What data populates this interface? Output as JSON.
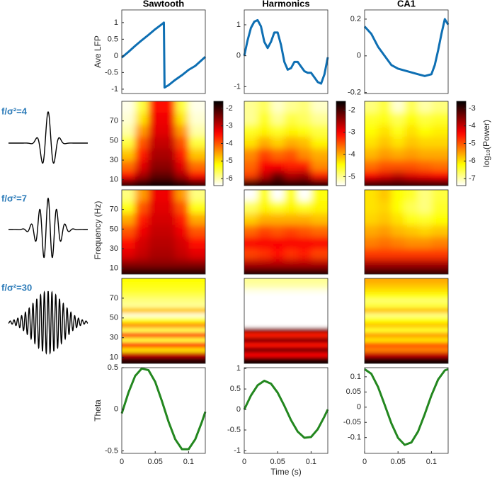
{
  "chart_data": [
    {
      "type": "line",
      "title": "Sawtooth",
      "ylabel": "Ave LFP",
      "color": "#0e6fb3",
      "x": [
        0,
        0.01,
        0.02,
        0.03,
        0.04,
        0.05,
        0.06,
        0.063,
        0.064,
        0.07,
        0.08,
        0.09,
        0.1,
        0.11,
        0.12,
        0.125
      ],
      "values": [
        -0.05,
        0.12,
        0.3,
        0.47,
        0.63,
        0.8,
        0.95,
        1.0,
        -0.95,
        -0.88,
        -0.72,
        -0.58,
        -0.42,
        -0.3,
        -0.12,
        -0.03
      ],
      "xlim": [
        0,
        0.125
      ],
      "ylim": [
        -1.13,
        1.38
      ],
      "yticks": [
        -1,
        -0.5,
        0,
        0.5,
        1
      ]
    },
    {
      "type": "line",
      "title": "Harmonics",
      "color": "#0e6fb3",
      "x": [
        0,
        0.005,
        0.01,
        0.015,
        0.02,
        0.025,
        0.03,
        0.035,
        0.04,
        0.045,
        0.05,
        0.055,
        0.06,
        0.065,
        0.07,
        0.075,
        0.08,
        0.085,
        0.09,
        0.095,
        0.1,
        0.105,
        0.11,
        0.115,
        0.12,
        0.125
      ],
      "values": [
        0,
        0.5,
        0.9,
        1.1,
        1.15,
        0.95,
        0.45,
        0.25,
        0.45,
        0.75,
        0.75,
        0.35,
        -0.2,
        -0.45,
        -0.4,
        -0.2,
        -0.2,
        -0.35,
        -0.5,
        -0.55,
        -0.55,
        -0.7,
        -0.85,
        -0.9,
        -0.6,
        -0.05
      ],
      "xlim": [
        0,
        0.125
      ],
      "ylim": [
        -1.22,
        1.48
      ],
      "yticks": [
        -1,
        0,
        1
      ]
    },
    {
      "type": "line",
      "title": "CA1",
      "color": "#0e6fb3",
      "x": [
        0,
        0.01,
        0.02,
        0.03,
        0.04,
        0.05,
        0.06,
        0.07,
        0.08,
        0.09,
        0.1,
        0.105,
        0.11,
        0.115,
        0.12,
        0.125
      ],
      "values": [
        0.16,
        0.12,
        0.05,
        0,
        -0.05,
        -0.07,
        -0.08,
        -0.09,
        -0.1,
        -0.11,
        -0.1,
        -0.05,
        0.03,
        0.12,
        0.2,
        0.17
      ],
      "xlim": [
        0,
        0.125
      ],
      "ylim": [
        -0.205,
        0.25
      ],
      "yticks": [
        -0.2,
        0,
        0.2
      ]
    },
    {
      "type": "heatmap",
      "xlim": [
        0,
        0.125
      ],
      "ylim": [
        4,
        90
      ],
      "yticks": [
        10,
        30,
        50,
        70
      ],
      "clim": [
        -6.4,
        -1.6
      ],
      "cticks": [
        -6,
        -5,
        -4,
        -3,
        -2
      ],
      "x": [
        0.01,
        0.03,
        0.05,
        0.07,
        0.09,
        0.11
      ],
      "y": [
        85,
        72,
        60,
        48,
        36,
        24,
        14,
        7
      ],
      "z": [
        [
          -6.3,
          -5.5,
          -3.5,
          -3.5,
          -5.5,
          -6.3
        ],
        [
          -6.2,
          -5,
          -3.3,
          -3.3,
          -5,
          -6.2
        ],
        [
          -6,
          -4.5,
          -3.2,
          -3.2,
          -4.5,
          -6
        ],
        [
          -5.5,
          -4,
          -3,
          -3,
          -4,
          -5.5
        ],
        [
          -4.8,
          -3.6,
          -2.8,
          -2.8,
          -3.6,
          -4.8
        ],
        [
          -4.2,
          -3.2,
          -2.6,
          -2.6,
          -3.2,
          -4.2
        ],
        [
          -3.5,
          -2.8,
          -2.3,
          -2.3,
          -2.8,
          -3.5
        ],
        [
          -2,
          -1.8,
          -1.7,
          -1.7,
          -1.8,
          -2
        ]
      ]
    },
    {
      "type": "heatmap",
      "xlim": [
        0,
        0.125
      ],
      "ylim": [
        4,
        90
      ],
      "clim": [
        -5.4,
        -1.6
      ],
      "cticks": [
        -5,
        -4,
        -3,
        -2
      ],
      "x": [
        0.01,
        0.03,
        0.05,
        0.07,
        0.09,
        0.11
      ],
      "y": [
        85,
        72,
        60,
        48,
        36,
        24,
        14,
        7
      ],
      "z": [
        [
          -5,
          -4.8,
          -5.2,
          -5,
          -4.9,
          -5.2
        ],
        [
          -5,
          -4.6,
          -5,
          -4.7,
          -4.8,
          -5
        ],
        [
          -4.6,
          -4.4,
          -4.6,
          -4.4,
          -4.5,
          -4.7
        ],
        [
          -4.3,
          -4,
          -4.2,
          -4,
          -4.1,
          -4.4
        ],
        [
          -3.8,
          -3.4,
          -3.6,
          -3.5,
          -3.8,
          -4
        ],
        [
          -3.6,
          -3,
          -3,
          -3.2,
          -3.2,
          -3.8
        ],
        [
          -3.4,
          -2.7,
          -2.2,
          -2.6,
          -2.5,
          -3.2
        ],
        [
          -1.8,
          -1.8,
          -1.8,
          -1.8,
          -1.8,
          -1.8
        ]
      ]
    },
    {
      "type": "heatmap",
      "xlim": [
        0,
        0.125
      ],
      "ylim": [
        4,
        90
      ],
      "clim": [
        -7.4,
        -2.6
      ],
      "cticks": [
        -7,
        -6,
        -5,
        -4,
        -3
      ],
      "clabel": "log₁₀(Power)",
      "x": [
        0.01,
        0.03,
        0.05,
        0.07,
        0.09,
        0.11
      ],
      "y": [
        85,
        72,
        60,
        48,
        36,
        24,
        14,
        7
      ],
      "z": [
        [
          -6.8,
          -6.5,
          -7.2,
          -6.6,
          -7,
          -6.8
        ],
        [
          -6.4,
          -6.3,
          -6.6,
          -6.2,
          -6.5,
          -6.4
        ],
        [
          -6.2,
          -6,
          -6.3,
          -6,
          -6.2,
          -6.1
        ],
        [
          -6,
          -5.8,
          -6,
          -5.8,
          -5.9,
          -5.9
        ],
        [
          -5.7,
          -5.5,
          -5.6,
          -5.5,
          -5.6,
          -5.6
        ],
        [
          -5.2,
          -5,
          -5,
          -5,
          -5.1,
          -5.2
        ],
        [
          -4.4,
          -4.2,
          -4,
          -4.2,
          -4.3,
          -4.4
        ],
        [
          -3,
          -3,
          -3,
          -3,
          -3,
          -3
        ]
      ]
    },
    {
      "type": "heatmap",
      "xlim": [
        0,
        0.125
      ],
      "ylim": [
        4,
        90
      ],
      "yticks": [
        10,
        30,
        50,
        70
      ],
      "ylabel": "Frequency (Hz)",
      "clim": [
        -6.4,
        -1.6
      ],
      "x": [
        0.01,
        0.03,
        0.05,
        0.07,
        0.09,
        0.11
      ],
      "y": [
        85,
        72,
        60,
        48,
        36,
        24,
        14,
        7
      ],
      "z": [
        [
          -5.8,
          -4.5,
          -3.3,
          -3.3,
          -4.5,
          -5.8
        ],
        [
          -5.3,
          -4,
          -3.2,
          -3.2,
          -4,
          -5.3
        ],
        [
          -4.6,
          -3.6,
          -3.1,
          -3.1,
          -3.6,
          -4.6
        ],
        [
          -4,
          -3.3,
          -3,
          -3,
          -3.3,
          -4
        ],
        [
          -3.5,
          -3.1,
          -2.9,
          -2.9,
          -3.1,
          -3.5
        ],
        [
          -3.2,
          -3,
          -2.8,
          -2.8,
          -3,
          -3.2
        ],
        [
          -2.6,
          -2.6,
          -2.6,
          -2.6,
          -2.6,
          -2.6
        ],
        [
          -1.9,
          -1.9,
          -1.9,
          -1.9,
          -1.9,
          -1.9
        ]
      ]
    },
    {
      "type": "heatmap",
      "xlim": [
        0,
        0.125
      ],
      "ylim": [
        4,
        90
      ],
      "clim": [
        -5.4,
        -1.6
      ],
      "x": [
        0.01,
        0.03,
        0.05,
        0.07,
        0.09,
        0.11
      ],
      "y": [
        85,
        72,
        60,
        48,
        36,
        24,
        14,
        7
      ],
      "z": [
        [
          -5.4,
          -4.5,
          -5.4,
          -4.5,
          -5.4,
          -4.5
        ],
        [
          -4.8,
          -4.4,
          -4.6,
          -4.4,
          -4.6,
          -4.4
        ],
        [
          -4.2,
          -4,
          -4,
          -4,
          -4,
          -4.1
        ],
        [
          -3.6,
          -3.4,
          -3.5,
          -3.4,
          -3.5,
          -3.6
        ],
        [
          -3,
          -3,
          -3,
          -3,
          -3,
          -3
        ],
        [
          -3.4,
          -3.3,
          -3.1,
          -3.3,
          -3.2,
          -3.4
        ],
        [
          -2.6,
          -2.6,
          -2.6,
          -2.6,
          -2.6,
          -2.6
        ],
        [
          -1.8,
          -1.8,
          -1.8,
          -1.8,
          -1.8,
          -1.8
        ]
      ]
    },
    {
      "type": "heatmap",
      "xlim": [
        0,
        0.125
      ],
      "ylim": [
        4,
        90
      ],
      "clim": [
        -7.4,
        -2.6
      ],
      "x": [
        0.01,
        0.03,
        0.05,
        0.07,
        0.09,
        0.11
      ],
      "y": [
        85,
        72,
        60,
        48,
        36,
        24,
        14,
        7
      ],
      "z": [
        [
          -6,
          -5.8,
          -6.2,
          -6.4,
          -6.8,
          -6.5
        ],
        [
          -6,
          -5.9,
          -6.2,
          -6.6,
          -6.8,
          -6.4
        ],
        [
          -5.9,
          -5.8,
          -6,
          -6.3,
          -6.4,
          -6.2
        ],
        [
          -5.6,
          -5.5,
          -5.7,
          -5.8,
          -5.9,
          -5.8
        ],
        [
          -5.3,
          -5.2,
          -5.3,
          -5.4,
          -5.4,
          -5.3
        ],
        [
          -4.8,
          -4.8,
          -4.8,
          -4.8,
          -4.8,
          -4.8
        ],
        [
          -3.8,
          -3.8,
          -3.8,
          -3.8,
          -3.8,
          -3.8
        ],
        [
          -3,
          -3,
          -3,
          -3,
          -3,
          -3
        ]
      ]
    },
    {
      "type": "heatmap",
      "xlim": [
        0,
        0.125
      ],
      "ylim": [
        4,
        90
      ],
      "yticks": [
        10,
        30,
        50,
        70
      ],
      "clim": [
        -6.4,
        -1.6
      ],
      "x": [
        0.02,
        0.0625,
        0.105
      ],
      "y": [
        87.5,
        82.5,
        77.5,
        72.5,
        67.5,
        62.5,
        57.5,
        52.5,
        47.5,
        42.5,
        37.5,
        32.5,
        27.5,
        22.5,
        17.5,
        12.5,
        7.5
      ],
      "z": [
        [
          -5.2,
          -5.2,
          -5.2
        ],
        [
          -5.3,
          -5.3,
          -5.3
        ],
        [
          -5.4,
          -5.4,
          -5.4
        ],
        [
          -5.6,
          -5.6,
          -5.6
        ],
        [
          -5.8,
          -5.8,
          -5.8
        ],
        [
          -5.9,
          -5.9,
          -5.9
        ],
        [
          -4.8,
          -4.8,
          -4.8
        ],
        [
          -6.2,
          -6.2,
          -6.2
        ],
        [
          -5.3,
          -5.3,
          -5.3
        ],
        [
          -4.4,
          -4.4,
          -4.4
        ],
        [
          -5.6,
          -5.6,
          -5.6
        ],
        [
          -3.8,
          -3.8,
          -3.8
        ],
        [
          -5.5,
          -5.5,
          -5.5
        ],
        [
          -3.5,
          -3.5,
          -3.5
        ],
        [
          -5,
          -5,
          -5
        ],
        [
          -3,
          -3,
          -3
        ],
        [
          -1.9,
          -1.9,
          -1.9
        ]
      ]
    },
    {
      "type": "heatmap",
      "xlim": [
        0,
        0.125
      ],
      "ylim": [
        4,
        90
      ],
      "clim": [
        -5.4,
        -1.6
      ],
      "x": [
        0.02,
        0.0625,
        0.105
      ],
      "y": [
        87.5,
        82.5,
        77.5,
        72.5,
        67.5,
        62.5,
        57.5,
        52.5,
        47.5,
        42.5,
        37.5,
        32.5,
        27.5,
        22.5,
        17.5,
        12.5,
        7.5
      ],
      "z": [
        [
          -5,
          -5,
          -5
        ],
        [
          -5.1,
          -5.1,
          -5.1
        ],
        [
          -5.3,
          -5.3,
          -5.3
        ],
        [
          -5.4,
          -5.4,
          -5.4
        ],
        [
          -5.4,
          -5.4,
          -5.4
        ],
        [
          -5.4,
          -5.4,
          -5.4
        ],
        [
          -5.4,
          -5.4,
          -5.4
        ],
        [
          -5.4,
          -5.4,
          -5.4
        ],
        [
          -5.4,
          -5.4,
          -5.4
        ],
        [
          -5.4,
          -5.4,
          -5.4
        ],
        [
          -2.4,
          -2.4,
          -2.4
        ],
        [
          -3.2,
          -3.2,
          -3.2
        ],
        [
          -2.3,
          -2.3,
          -2.3
        ],
        [
          -3.1,
          -3.1,
          -3.1
        ],
        [
          -2.2,
          -2.2,
          -2.2
        ],
        [
          -3,
          -3,
          -3
        ],
        [
          -1.8,
          -1.8,
          -1.8
        ]
      ]
    },
    {
      "type": "heatmap",
      "xlim": [
        0,
        0.125
      ],
      "ylim": [
        4,
        90
      ],
      "clim": [
        -7.4,
        -2.6
      ],
      "x": [
        0.02,
        0.0625,
        0.105
      ],
      "y": [
        87.5,
        82.5,
        77.5,
        72.5,
        67.5,
        62.5,
        57.5,
        52.5,
        47.5,
        42.5,
        37.5,
        32.5,
        27.5,
        22.5,
        17.5,
        12.5,
        7.5
      ],
      "z": [
        [
          -5.6,
          -5.6,
          -5.6
        ],
        [
          -5.8,
          -5.8,
          -5.8
        ],
        [
          -6,
          -6,
          -6
        ],
        [
          -6.3,
          -6.3,
          -6.3
        ],
        [
          -6.7,
          -6.7,
          -6.7
        ],
        [
          -6.5,
          -6.5,
          -6.5
        ],
        [
          -5.8,
          -5.8,
          -5.8
        ],
        [
          -6.8,
          -6.8,
          -6.8
        ],
        [
          -6.2,
          -6.2,
          -6.2
        ],
        [
          -5.8,
          -5.8,
          -5.8
        ],
        [
          -6.4,
          -6.4,
          -6.4
        ],
        [
          -5.5,
          -5.5,
          -5.5
        ],
        [
          -6,
          -6,
          -6
        ],
        [
          -5,
          -5,
          -5
        ],
        [
          -5.3,
          -5.3,
          -5.3
        ],
        [
          -4,
          -4,
          -4
        ],
        [
          -2.8,
          -2.8,
          -2.8
        ]
      ]
    },
    {
      "type": "line",
      "ylabel": "Theta",
      "color": "#23871f",
      "x": [
        0,
        0.01,
        0.02,
        0.03,
        0.04,
        0.05,
        0.06,
        0.07,
        0.08,
        0.09,
        0.1,
        0.11,
        0.12,
        0.125
      ],
      "values": [
        -0.05,
        0.2,
        0.4,
        0.49,
        0.47,
        0.33,
        0.1,
        -0.15,
        -0.36,
        -0.48,
        -0.48,
        -0.36,
        -0.15,
        -0.03
      ],
      "xlim": [
        0,
        0.125
      ],
      "ylim": [
        -0.53,
        0.5
      ],
      "xticks": [
        0,
        0.05,
        0.1
      ],
      "yticks": [
        -0.5,
        0,
        0.5
      ]
    },
    {
      "type": "line",
      "xlabel": "Time (s)",
      "color": "#23871f",
      "x": [
        0,
        0.01,
        0.02,
        0.03,
        0.04,
        0.05,
        0.06,
        0.07,
        0.08,
        0.09,
        0.1,
        0.11,
        0.12,
        0.125
      ],
      "values": [
        0,
        0.34,
        0.59,
        0.7,
        0.63,
        0.41,
        0.09,
        -0.26,
        -0.54,
        -0.69,
        -0.67,
        -0.48,
        -0.17,
        0
      ],
      "xlim": [
        0,
        0.125
      ],
      "ylim": [
        -1.07,
        1.02
      ],
      "xticks": [
        0,
        0.05,
        0.1
      ],
      "yticks": [
        -1,
        -0.5,
        0,
        0.5,
        1
      ]
    },
    {
      "type": "line",
      "color": "#23871f",
      "x": [
        0,
        0.01,
        0.02,
        0.03,
        0.04,
        0.05,
        0.06,
        0.07,
        0.08,
        0.09,
        0.1,
        0.11,
        0.12,
        0.125
      ],
      "values": [
        0.125,
        0.11,
        0.067,
        0.008,
        -0.053,
        -0.101,
        -0.124,
        -0.116,
        -0.08,
        -0.023,
        0.039,
        0.091,
        0.121,
        0.125
      ],
      "xlim": [
        0,
        0.125
      ],
      "ylim": [
        -0.152,
        0.13
      ],
      "xticks": [
        0,
        0.05,
        0.1
      ],
      "yticks": [
        -0.1,
        -0.05,
        0,
        0.05,
        0.1
      ]
    }
  ],
  "wavelets": [
    {
      "label": "f/σ²=4"
    },
    {
      "label": "f/σ²=7"
    },
    {
      "label": "f/σ²=30"
    }
  ]
}
